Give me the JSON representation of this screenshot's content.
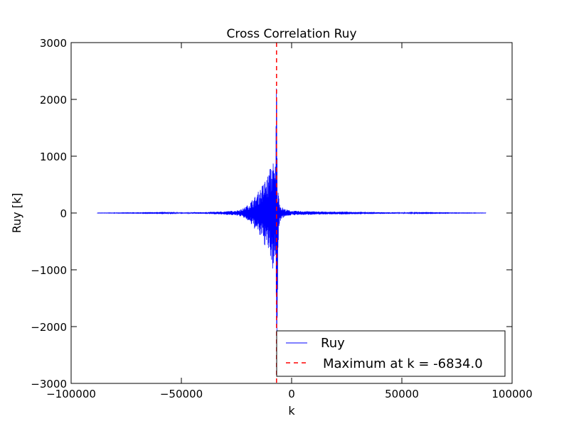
{
  "chart_data": {
    "type": "line",
    "title": "Cross Correlation Ruy",
    "xlabel": "k",
    "ylabel": "Ruy [k]",
    "xlim": [
      -100000,
      100000
    ],
    "ylim": [
      -3000,
      3000
    ],
    "xticks": [
      -100000,
      -50000,
      0,
      50000,
      100000
    ],
    "xtick_labels": [
      "−100000",
      "−50000",
      "0",
      "50000",
      "100000"
    ],
    "yticks": [
      -3000,
      -2000,
      -1000,
      0,
      1000,
      2000,
      3000
    ],
    "ytick_labels": [
      "−3000",
      "−2000",
      "−1000",
      "0",
      "1000",
      "2000",
      "3000"
    ],
    "grid": false,
    "legend_position": "lower-right",
    "series": [
      {
        "name": "Ruy",
        "color": "#0000ff",
        "style": "solid",
        "x_range": [
          -88200,
          88200
        ],
        "x": [
          -88200,
          -60000,
          -40000,
          -30000,
          -25000,
          -22000,
          -20000,
          -18000,
          -16000,
          -14500,
          -13000,
          -12000,
          -11000,
          -10500,
          -10000,
          -9500,
          -9000,
          -8500,
          -8000,
          -7600,
          -7200,
          -6834,
          -6500,
          -6000,
          -5000,
          -3000,
          0,
          5000,
          15000,
          25000,
          40000,
          60000,
          88200
        ],
        "y_max": [
          2,
          6,
          15,
          30,
          45,
          80,
          140,
          230,
          320,
          420,
          520,
          600,
          660,
          700,
          760,
          860,
          980,
          940,
          880,
          760,
          1000,
          2500,
          420,
          380,
          120,
          70,
          40,
          35,
          25,
          25,
          15,
          6,
          2
        ],
        "y_min": [
          -2,
          -6,
          -15,
          -30,
          -45,
          -80,
          -140,
          -230,
          -320,
          -420,
          -520,
          -600,
          -660,
          -700,
          -760,
          -860,
          -1050,
          -1000,
          -900,
          -780,
          -1000,
          -2250,
          -1700,
          -300,
          -110,
          -60,
          -40,
          -35,
          -25,
          -25,
          -15,
          -6,
          -2
        ]
      },
      {
        "name": "Maximum at k = -6834.0",
        "color": "#ff0000",
        "style": "dashed",
        "x": -6834.0
      }
    ]
  }
}
